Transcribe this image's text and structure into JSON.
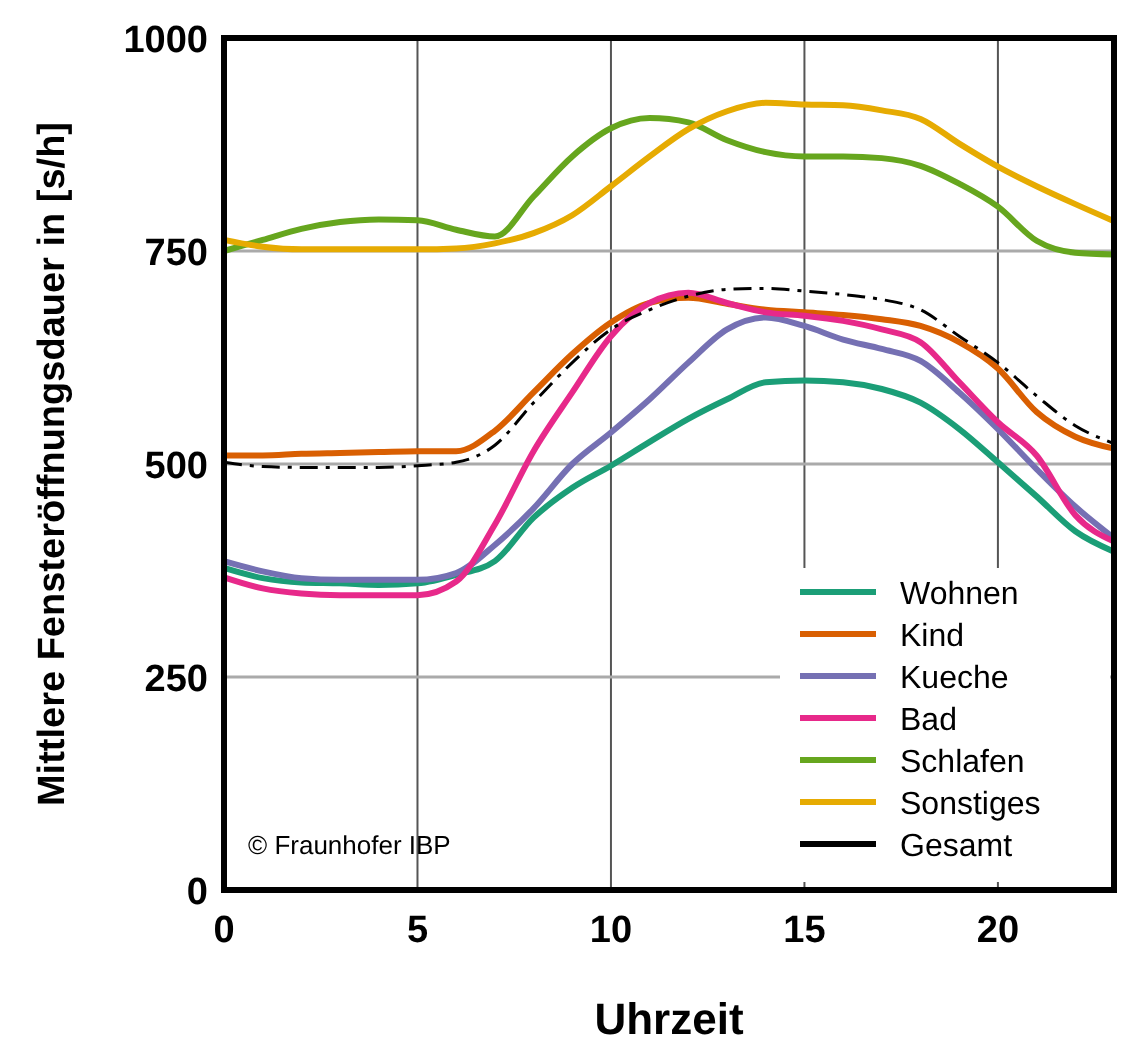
{
  "chart_data": {
    "type": "line",
    "xlabel": "Uhrzeit",
    "ylabel": "Mittlere Fensteröffnungsdauer in [s/h]",
    "x": [
      0,
      1,
      2,
      3,
      4,
      5,
      6,
      7,
      8,
      9,
      10,
      11,
      12,
      13,
      14,
      15,
      16,
      17,
      18,
      19,
      20,
      21,
      22,
      23
    ],
    "xlim": [
      0,
      23
    ],
    "xticks": [
      0,
      5,
      10,
      15,
      20
    ],
    "ylim": [
      0,
      1000
    ],
    "yticks": [
      0,
      250,
      500,
      750,
      1000
    ],
    "grid": true,
    "legend": "bottom right",
    "annotations": [
      "© Fraunhofer IBP"
    ],
    "series": [
      {
        "name": "Wohnen",
        "color": "#1b9e77",
        "values": [
          378,
          366,
          361,
          360,
          358,
          360,
          370,
          386,
          437,
          472,
          498,
          526,
          553,
          576,
          596,
          598,
          596,
          588,
          572,
          541,
          502,
          462,
          421,
          397
        ]
      },
      {
        "name": "Kind",
        "color": "#d95f02",
        "values": [
          510,
          510,
          512,
          513,
          514,
          515,
          515,
          539,
          584,
          629,
          666,
          689,
          695,
          688,
          681,
          678,
          675,
          670,
          662,
          643,
          612,
          561,
          532,
          518
        ]
      },
      {
        "name": "Kueche",
        "color": "#7570b3",
        "values": [
          386,
          374,
          366,
          364,
          364,
          364,
          372,
          405,
          448,
          500,
          537,
          576,
          619,
          658,
          672,
          662,
          646,
          635,
          621,
          584,
          541,
          494,
          450,
          413
        ]
      },
      {
        "name": "Bad",
        "color": "#e7298a",
        "values": [
          367,
          354,
          348,
          346,
          346,
          346,
          362,
          429,
          515,
          584,
          650,
          689,
          701,
          689,
          678,
          674,
          668,
          658,
          643,
          596,
          549,
          510,
          440,
          409
        ]
      },
      {
        "name": "Schlafen",
        "color": "#66a61e",
        "values": [
          750,
          763,
          776,
          784,
          787,
          786,
          775,
          767,
          814,
          861,
          894,
          906,
          901,
          880,
          866,
          861,
          861,
          859,
          850,
          829,
          802,
          762,
          748,
          746
        ]
      },
      {
        "name": "Sonstiges",
        "color": "#e6ab02",
        "values": [
          763,
          755,
          752,
          752,
          752,
          752,
          753,
          759,
          771,
          792,
          826,
          861,
          893,
          914,
          924,
          922,
          921,
          915,
          905,
          876,
          849,
          826,
          805,
          785
        ]
      },
      {
        "name": "Gesamt",
        "color": "#000000",
        "line_style": "dashdot",
        "values": [
          502,
          497,
          496,
          496,
          496,
          498,
          502,
          522,
          572,
          619,
          658,
          681,
          697,
          705,
          706,
          703,
          699,
          693,
          681,
          650,
          619,
          580,
          545,
          524
        ]
      }
    ]
  }
}
